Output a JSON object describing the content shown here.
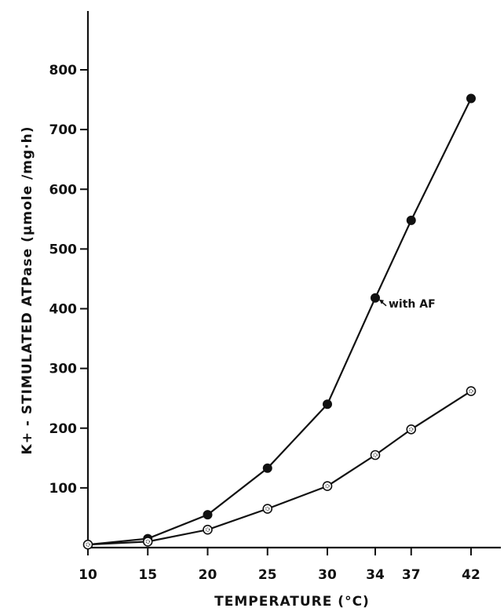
{
  "chart_data": {
    "type": "line",
    "xlabel": "TEMPERATURE (°C)",
    "ylabel": "K+ - STIMULATED ATPase (µmole /mg·h)",
    "x_ticks": [
      10,
      15,
      20,
      25,
      30,
      34,
      37,
      42
    ],
    "y_ticks": [
      100,
      200,
      300,
      400,
      500,
      600,
      700,
      800
    ],
    "xlim": [
      10,
      42
    ],
    "ylim": [
      0,
      800
    ],
    "grid": false,
    "series": [
      {
        "name": "with AF",
        "marker": "filled-circle",
        "x": [
          10,
          15,
          20,
          25,
          30,
          34,
          37,
          42
        ],
        "y": [
          5,
          15,
          55,
          133,
          240,
          418,
          548,
          752
        ]
      },
      {
        "marker": "dotted-circle",
        "x": [
          10,
          15,
          20,
          25,
          30,
          34,
          37,
          42
        ],
        "y": [
          5,
          10,
          30,
          65,
          103,
          155,
          198,
          262
        ]
      }
    ],
    "annotation": {
      "text": "with AF",
      "series_index": 0,
      "point_index": 5
    }
  }
}
